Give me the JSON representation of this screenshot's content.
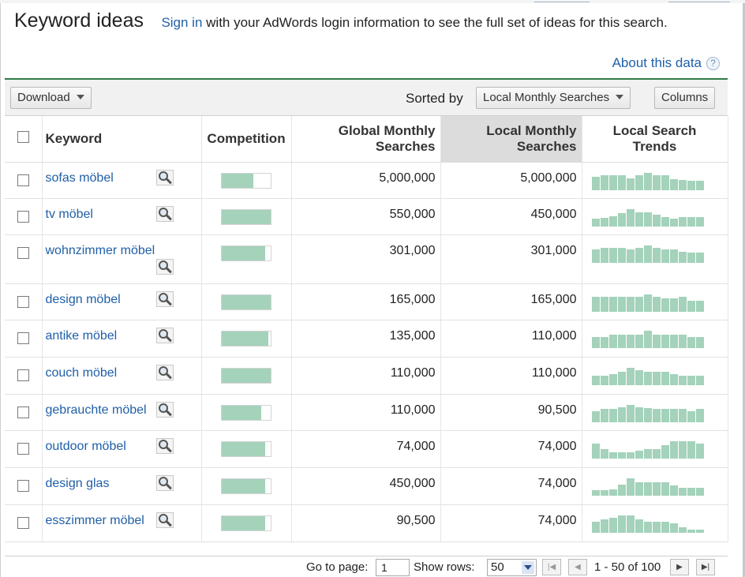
{
  "header": {
    "title": "Keyword ideas",
    "sign_in_link": "Sign in",
    "intro_text": " with your AdWords login information to see the full set of ideas for this search.",
    "about_link": "About this data",
    "about_icon": "?"
  },
  "toolbar": {
    "download_label": "Download",
    "sorted_by_label": "Sorted by",
    "sort_value": "Local Monthly Searches",
    "columns_label": "Columns"
  },
  "table": {
    "columns": {
      "keyword": "Keyword",
      "competition": "Competition",
      "global_monthly": "Global Monthly Searches",
      "local_monthly": "Local Monthly Searches",
      "local_trends": "Local Search Trends"
    },
    "rows": [
      {
        "keyword": "sofas möbel",
        "competition": 0.65,
        "global": "5,000,000",
        "local": "5,000,000",
        "trend": [
          0.75,
          0.85,
          0.85,
          0.85,
          0.7,
          0.85,
          1.0,
          0.85,
          0.85,
          0.65,
          0.6,
          0.55,
          0.55
        ]
      },
      {
        "keyword": "tv möbel",
        "competition": 1.0,
        "global": "550,000",
        "local": "450,000",
        "trend": [
          0.45,
          0.5,
          0.6,
          0.75,
          1.0,
          0.8,
          0.8,
          0.7,
          0.55,
          0.45,
          0.55,
          0.55,
          0.55
        ]
      },
      {
        "keyword": "wohnzimmer möbel",
        "competition": 0.88,
        "global": "301,000",
        "local": "301,000",
        "trend": [
          0.75,
          0.85,
          0.85,
          0.85,
          0.75,
          0.85,
          1.0,
          0.85,
          0.75,
          0.75,
          0.65,
          0.6,
          0.6
        ]
      },
      {
        "keyword": "design möbel",
        "competition": 1.0,
        "global": "165,000",
        "local": "165,000",
        "trend": [
          0.85,
          0.85,
          0.85,
          0.85,
          0.85,
          0.85,
          1.0,
          0.85,
          0.75,
          0.75,
          0.85,
          0.65,
          0.65
        ]
      },
      {
        "keyword": "antike möbel",
        "competition": 0.95,
        "global": "135,000",
        "local": "110,000",
        "trend": [
          0.65,
          0.65,
          0.75,
          0.75,
          0.75,
          0.75,
          1.0,
          0.75,
          0.75,
          0.75,
          0.75,
          0.65,
          0.65
        ]
      },
      {
        "keyword": "couch möbel",
        "competition": 1.0,
        "global": "110,000",
        "local": "110,000",
        "trend": [
          0.55,
          0.55,
          0.65,
          0.75,
          1.0,
          0.85,
          0.75,
          0.75,
          0.75,
          0.65,
          0.55,
          0.55,
          0.55
        ]
      },
      {
        "keyword": "gebrauchte möbel",
        "competition": 0.8,
        "global": "110,000",
        "local": "90,500",
        "trend": [
          0.65,
          0.75,
          0.75,
          0.85,
          1.0,
          0.85,
          0.8,
          0.75,
          0.75,
          0.75,
          0.75,
          0.65,
          0.75
        ]
      },
      {
        "keyword": "outdoor möbel",
        "competition": 0.88,
        "global": "74,000",
        "local": "74,000",
        "trend": [
          0.85,
          0.55,
          0.35,
          0.35,
          0.35,
          0.45,
          0.55,
          0.55,
          0.75,
          1.0,
          1.0,
          1.0,
          0.85
        ]
      },
      {
        "keyword": "design glas",
        "competition": 0.88,
        "global": "450,000",
        "local": "74,000",
        "trend": [
          0.3,
          0.3,
          0.35,
          0.65,
          1.0,
          0.75,
          0.75,
          0.75,
          0.75,
          0.6,
          0.45,
          0.45,
          0.45
        ]
      },
      {
        "keyword": "esszimmer möbel",
        "competition": 0.88,
        "global": "90,500",
        "local": "74,000",
        "trend": [
          0.65,
          0.75,
          0.85,
          1.0,
          1.0,
          0.75,
          0.65,
          0.65,
          0.65,
          0.55,
          0.3,
          0.2,
          0.2
        ]
      }
    ]
  },
  "footer": {
    "go_to_page_label": "Go to page:",
    "page_value": "1",
    "show_rows_label": "Show rows:",
    "rows_value": "50",
    "range_text": "1 - 50 of 100",
    "first_icon": "first-page-icon",
    "prev_icon": "previous-page-icon",
    "next_icon": "next-page-icon",
    "last_icon": "last-page-icon"
  },
  "colors": {
    "link": "#1f5fa8",
    "accent_line": "#2d7d46",
    "bar_fill": "#a4d2bb",
    "sorted_column": "#dcdcdc"
  }
}
